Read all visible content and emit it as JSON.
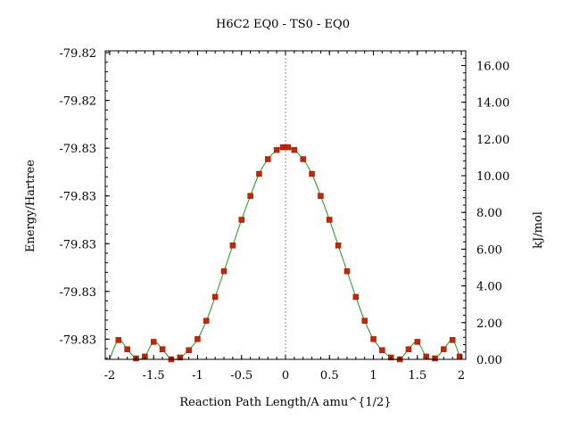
{
  "chart_data": {
    "type": "line",
    "title": "H6C2    EQ0 - TS0 - EQ0",
    "xlabel": "Reaction Path Length/A amu^{1/2}",
    "ylabel": "Energy/Hartree",
    "y2label": "kJ/mol",
    "xlim": [
      -2.05,
      2.05
    ],
    "ylim_kj": [
      0.0,
      16.8
    ],
    "x_ticks": [
      -2,
      -1.5,
      -1,
      -0.5,
      0,
      0.5,
      1,
      1.5,
      2
    ],
    "x_tick_labels": [
      "-2",
      "-1.5",
      "-1",
      "-0.5",
      "0",
      "0.5",
      "1",
      "1.5",
      "2"
    ],
    "y_left_tick_labels": [
      "-79.82",
      "-79.82",
      "-79.83",
      "-79.83",
      "-79.83",
      "-79.83",
      "-79.83"
    ],
    "y_left_tick_positions_kj": [
      16.7,
      14.1,
      11.5,
      8.9,
      6.3,
      3.7,
      1.1
    ],
    "y_right_ticks": [
      0.0,
      2.0,
      4.0,
      6.0,
      8.0,
      10.0,
      12.0,
      14.0,
      16.0
    ],
    "y_right_tick_labels": [
      "0.00",
      "2.00",
      "4.00",
      "6.00",
      "8.00",
      "10.00",
      "12.00",
      "14.00",
      "16.00"
    ],
    "ts_marker_x": 0,
    "grid": false,
    "colors": {
      "curve": "#1a9a1a",
      "points": "#cc2200",
      "marker_line": "#888888"
    },
    "series": [
      {
        "x": [
          -1.9,
          -1.8,
          -1.7,
          -1.6,
          -1.5,
          -1.4,
          -1.3,
          -1.2,
          -1.1,
          -1.0,
          -0.9,
          -0.8,
          -0.7,
          -0.6,
          -0.5,
          -0.4,
          -0.3,
          -0.2,
          -0.1,
          -0.03,
          0.0,
          0.03,
          0.1,
          0.2,
          0.3,
          0.4,
          0.5,
          0.6,
          0.7,
          0.8,
          0.9,
          1.0,
          1.1,
          1.2,
          1.3,
          1.4,
          1.5,
          1.6,
          1.7,
          1.8,
          1.9,
          1.98
        ],
        "kj": [
          1.05,
          0.55,
          0.05,
          0.15,
          0.95,
          0.55,
          0.0,
          0.1,
          0.5,
          1.1,
          2.1,
          3.4,
          4.8,
          6.2,
          7.6,
          8.9,
          10.1,
          10.9,
          11.4,
          11.55,
          11.55,
          11.55,
          11.4,
          10.9,
          10.1,
          8.9,
          7.6,
          6.2,
          4.8,
          3.4,
          2.1,
          1.1,
          0.5,
          0.1,
          0.0,
          0.55,
          0.95,
          0.15,
          0.05,
          0.55,
          1.05,
          0.15
        ]
      }
    ]
  }
}
